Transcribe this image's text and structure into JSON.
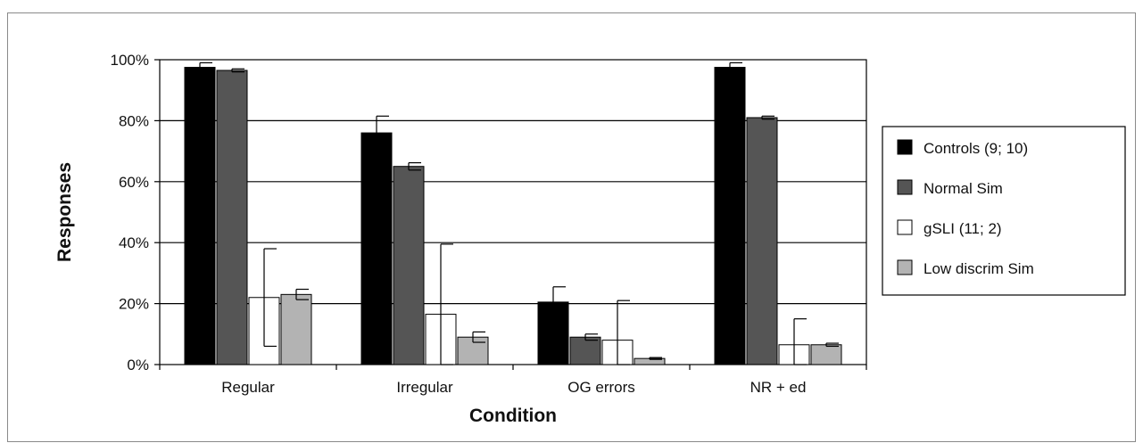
{
  "chart_data": {
    "type": "bar",
    "title": "",
    "xlabel": "Condition",
    "ylabel": "Responses",
    "ylim": [
      0,
      100
    ],
    "yticks": [
      "0%",
      "20%",
      "40%",
      "60%",
      "80%",
      "100%"
    ],
    "ytick_values": [
      0,
      20,
      40,
      60,
      80,
      100
    ],
    "grid": true,
    "legend_position": "right",
    "categories": [
      "Regular",
      "Irregular",
      "OG errors",
      "NR + ed"
    ],
    "series": [
      {
        "name": "Controls (9; 10)",
        "color": "#000000",
        "values": [
          97.5,
          76,
          20.5,
          97.5
        ],
        "errors": [
          1.5,
          5.5,
          5,
          1.5
        ]
      },
      {
        "name": "Normal Sim",
        "color": "#555555",
        "values": [
          96.5,
          65,
          9,
          81
        ],
        "errors": [
          0.5,
          1.2,
          1,
          0.5
        ]
      },
      {
        "name": "gSLI (11; 2)",
        "color": "#ffffff",
        "values": [
          22,
          16.5,
          8,
          6.5
        ],
        "errors": [
          16,
          23,
          13,
          8.5
        ]
      },
      {
        "name": "Low discrim Sim",
        "color": "#b3b3b3",
        "values": [
          23,
          9,
          2,
          6.5
        ],
        "errors": [
          1.7,
          1.7,
          0.3,
          0.5
        ]
      }
    ]
  }
}
